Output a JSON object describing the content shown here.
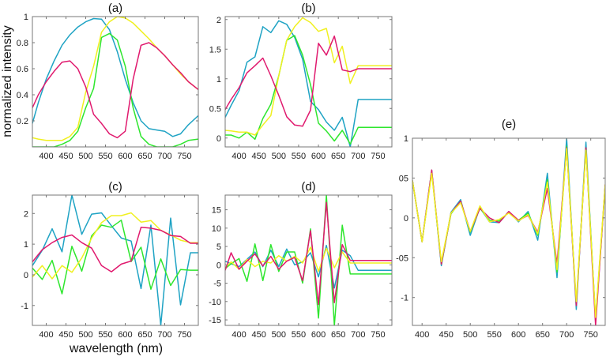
{
  "chart_data": {
    "shared": {
      "xlabel": "wavelength (nm)",
      "ylabel": "normalized intensity",
      "series_colors": {
        "blue": "#1fa3c4",
        "green": "#2ee62e",
        "yellow": "#f0f020",
        "magenta": "#e0196e"
      },
      "grid": false
    },
    "panels": [
      {
        "id": "a",
        "type": "line",
        "title": "(a)",
        "xlim": [
          365,
          785
        ],
        "ylim": [
          0,
          1
        ],
        "xticks": [
          400,
          450,
          500,
          550,
          600,
          650,
          700,
          750
        ],
        "yticks": [
          0.2,
          0.4,
          0.6,
          0.8,
          1
        ],
        "ytick_labels": [
          "0.2",
          "0.4",
          "0.6",
          "0.8",
          "1"
        ],
        "x": [
          365,
          380,
          400,
          420,
          440,
          460,
          480,
          500,
          520,
          540,
          560,
          580,
          600,
          620,
          640,
          660,
          680,
          700,
          720,
          740,
          760,
          785
        ],
        "series": [
          {
            "name": "blue",
            "values": [
              0.18,
              0.34,
              0.52,
              0.66,
              0.78,
              0.86,
              0.92,
              0.96,
              0.985,
              0.98,
              0.9,
              0.73,
              0.52,
              0.34,
              0.2,
              0.14,
              0.13,
              0.12,
              0.08,
              0.1,
              0.17,
              0.24
            ]
          },
          {
            "name": "green",
            "values": [
              0.0,
              0.0,
              0.0,
              0.0,
              0.02,
              0.05,
              0.12,
              0.3,
              0.45,
              0.84,
              0.87,
              0.82,
              0.62,
              0.3,
              0.08,
              0.02,
              0.0,
              0.0,
              0.0,
              0.02,
              0.05,
              0.06
            ]
          },
          {
            "name": "yellow",
            "values": [
              0.07,
              0.06,
              0.05,
              0.05,
              0.05,
              0.08,
              0.15,
              0.42,
              0.62,
              0.88,
              0.96,
              1.0,
              0.99,
              0.95,
              0.89,
              0.83,
              0.76,
              0.7,
              0.63,
              0.56,
              0.5,
              0.44
            ]
          },
          {
            "name": "magenta",
            "values": [
              0.3,
              0.4,
              0.5,
              0.58,
              0.65,
              0.66,
              0.6,
              0.46,
              0.25,
              0.18,
              0.1,
              0.07,
              0.12,
              0.52,
              0.78,
              0.8,
              0.76,
              0.7,
              0.63,
              0.57,
              0.5,
              0.44
            ]
          }
        ]
      },
      {
        "id": "b",
        "type": "line",
        "title": "(b)",
        "xlim": [
          365,
          785
        ],
        "ylim": [
          -0.15,
          2.05
        ],
        "xticks": [
          400,
          450,
          500,
          550,
          600,
          650,
          700,
          750
        ],
        "yticks": [
          0,
          0.5,
          1,
          1.5,
          2
        ],
        "ytick_labels": [
          "0",
          "0.5",
          "1",
          "1.5",
          "2"
        ],
        "x": [
          365,
          380,
          400,
          420,
          440,
          460,
          480,
          500,
          520,
          540,
          560,
          580,
          600,
          620,
          640,
          660,
          680,
          700,
          720,
          740,
          760,
          785
        ],
        "series": [
          {
            "name": "blue",
            "values": [
              0.35,
              0.55,
              0.8,
              1.28,
              1.37,
              1.88,
              1.78,
              1.98,
              1.92,
              1.7,
              1.33,
              0.62,
              0.48,
              0.27,
              0.13,
              0.35,
              -0.15,
              0.65,
              0.65,
              0.65,
              0.65,
              0.65
            ]
          },
          {
            "name": "green",
            "values": [
              0.05,
              0.05,
              0.0,
              0.1,
              -0.02,
              0.33,
              0.57,
              1.05,
              1.65,
              1.73,
              1.4,
              0.9,
              0.25,
              0.12,
              -0.05,
              0.13,
              -0.1,
              0.18,
              0.18,
              0.18,
              0.18,
              0.18
            ]
          },
          {
            "name": "yellow",
            "values": [
              0.13,
              0.12,
              0.1,
              0.1,
              0.05,
              0.22,
              0.38,
              1.05,
              1.65,
              1.88,
              2.03,
              1.95,
              1.8,
              1.85,
              1.27,
              1.55,
              0.92,
              1.22,
              1.22,
              1.22,
              1.22,
              1.22
            ]
          },
          {
            "name": "magenta",
            "values": [
              0.48,
              0.65,
              0.85,
              1.1,
              1.22,
              1.35,
              1.05,
              0.72,
              0.36,
              0.22,
              0.2,
              0.47,
              1.6,
              1.4,
              1.72,
              1.15,
              1.12,
              1.17,
              1.17,
              1.17,
              1.17,
              1.17
            ]
          }
        ]
      },
      {
        "id": "c",
        "type": "line",
        "title": "(c)",
        "xlim": [
          365,
          785
        ],
        "ylim": [
          -1.65,
          2.6
        ],
        "xticks": [
          400,
          450,
          500,
          550,
          600,
          650,
          700,
          750
        ],
        "yticks": [
          -1,
          0,
          1,
          2
        ],
        "ytick_labels": [
          "-1",
          "0",
          "1",
          "2"
        ],
        "x": [
          365,
          390,
          415,
          440,
          465,
          490,
          515,
          540,
          565,
          590,
          615,
          640,
          665,
          690,
          715,
          740,
          765,
          785
        ],
        "series": [
          {
            "name": "blue",
            "values": [
              0.3,
              0.8,
              1.5,
              0.75,
              2.6,
              1.32,
              1.98,
              2.02,
              1.6,
              1.2,
              1.1,
              -0.45,
              1.62,
              -1.65,
              1.85,
              -0.98,
              0.72,
              0.72
            ]
          },
          {
            "name": "green",
            "values": [
              0.22,
              -0.15,
              0.47,
              -0.62,
              0.93,
              0.12,
              1.27,
              1.62,
              1.55,
              1.78,
              0.43,
              0.9,
              -0.47,
              0.52,
              -0.35,
              0.17,
              0.15,
              0.15
            ]
          },
          {
            "name": "yellow",
            "values": [
              -0.07,
              0.3,
              -0.13,
              0.3,
              0.08,
              0.55,
              1.2,
              1.7,
              1.93,
              1.93,
              2.02,
              1.72,
              1.77,
              1.45,
              1.3,
              1.13,
              1.05,
              1.05
            ]
          },
          {
            "name": "magenta",
            "values": [
              0.42,
              0.82,
              1.05,
              1.22,
              1.3,
              1.05,
              0.87,
              0.3,
              0.1,
              0.35,
              0.45,
              1.55,
              1.52,
              1.45,
              1.28,
              1.25,
              1.03,
              1.03
            ]
          }
        ]
      },
      {
        "id": "d",
        "type": "line",
        "title": "(d)",
        "xlim": [
          365,
          785
        ],
        "ylim": [
          -16.5,
          19
        ],
        "xticks": [
          400,
          450,
          500,
          550,
          600,
          650,
          700,
          750
        ],
        "yticks": [
          -15,
          -10,
          -5,
          0,
          5,
          10,
          15
        ],
        "ytick_labels": [
          "-15",
          "-10",
          "-5",
          "0",
          "5",
          "10",
          "15"
        ],
        "x": [
          365,
          380,
          400,
          420,
          440,
          460,
          480,
          500,
          520,
          540,
          560,
          580,
          600,
          620,
          640,
          660,
          680,
          700,
          720,
          740,
          760,
          785
        ],
        "series": [
          {
            "name": "blue",
            "values": [
              1.0,
              0.3,
              -0.5,
              1.5,
              3.5,
              -0.5,
              4.0,
              -0.5,
              4.3,
              0.0,
              0.8,
              3.3,
              -3.3,
              5.3,
              -6.3,
              4.0,
              2.5,
              -1.5,
              -1.5,
              -1.5,
              -1.5,
              -1.5
            ]
          },
          {
            "name": "green",
            "values": [
              -1.0,
              0.3,
              1.7,
              -4.5,
              5.7,
              -4.3,
              5.5,
              -1.8,
              3.5,
              3.5,
              -5.0,
              9.8,
              -14.5,
              19.0,
              -16.5,
              10.8,
              -2.5,
              -2.5,
              -2.5,
              -2.5,
              -2.5,
              -2.5
            ]
          },
          {
            "name": "yellow",
            "values": [
              -0.8,
              0.8,
              -1.2,
              1.5,
              -0.5,
              1.0,
              0.5,
              2.5,
              1.0,
              2.3,
              0.5,
              4.8,
              -1.8,
              4.5,
              -0.8,
              3.5,
              0.5,
              0.5,
              0.5,
              0.5,
              0.5,
              0.5
            ]
          },
          {
            "name": "magenta",
            "values": [
              -1.5,
              3.3,
              -1.2,
              1.0,
              3.0,
              -0.3,
              2.3,
              -1.2,
              1.0,
              2.0,
              -4.3,
              9.3,
              -10.8,
              17.0,
              -10.3,
              5.5,
              1.2,
              1.2,
              1.2,
              1.2,
              1.2,
              1.2
            ]
          }
        ]
      },
      {
        "id": "e",
        "type": "line",
        "title": "(e)",
        "xlim": [
          380,
          780
        ],
        "ylim": [
          -1.35,
          1.0
        ],
        "xticks": [
          400,
          450,
          500,
          550,
          600,
          650,
          700,
          750
        ],
        "yticks": [
          -1,
          -0.5,
          0,
          0.5,
          1
        ],
        "ytick_labels": [
          "-1",
          "-05",
          "0",
          "05",
          "1"
        ],
        "x": [
          380,
          400,
          420,
          440,
          460,
          480,
          500,
          520,
          540,
          560,
          580,
          600,
          620,
          640,
          660,
          680,
          700,
          720,
          740,
          760,
          780
        ],
        "series": [
          {
            "name": "blue",
            "values": [
              0.47,
              -0.3,
              0.6,
              -0.6,
              0.07,
              0.23,
              -0.22,
              0.13,
              -0.05,
              -0.06,
              0.08,
              -0.05,
              0.08,
              -0.28,
              0.56,
              -0.75,
              1.0,
              -1.15,
              0.95,
              -1.3,
              0.4
            ]
          },
          {
            "name": "green",
            "values": [
              0.47,
              -0.3,
              0.58,
              -0.58,
              0.05,
              0.21,
              -0.18,
              0.12,
              -0.03,
              -0.04,
              0.07,
              -0.03,
              0.06,
              -0.22,
              0.48,
              -0.68,
              0.9,
              -1.08,
              0.88,
              -1.27,
              0.4
            ]
          },
          {
            "name": "magenta",
            "values": [
              0.47,
              -0.3,
              0.6,
              -0.58,
              0.06,
              0.21,
              -0.17,
              0.12,
              0.0,
              -0.06,
              0.08,
              -0.03,
              0.03,
              -0.18,
              0.37,
              -0.58,
              0.88,
              -1.1,
              0.88,
              -1.35,
              0.42
            ]
          },
          {
            "name": "yellow",
            "values": [
              0.47,
              -0.3,
              0.56,
              -0.55,
              0.06,
              0.19,
              -0.17,
              0.15,
              -0.05,
              -0.02,
              0.06,
              -0.04,
              0.04,
              -0.2,
              0.45,
              -0.65,
              0.87,
              -1.05,
              0.85,
              -1.25,
              0.42
            ]
          }
        ]
      }
    ]
  }
}
